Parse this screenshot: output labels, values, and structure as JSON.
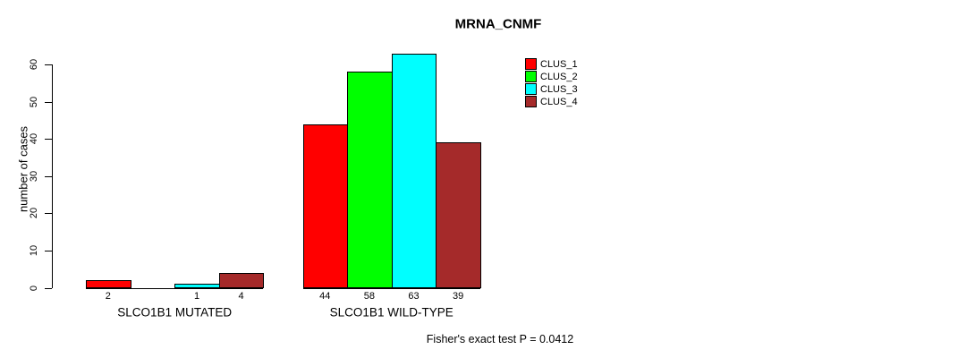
{
  "chart_data": {
    "type": "bar",
    "title": "MRNA_CNMF",
    "ylabel": "number of cases",
    "ylim": [
      0,
      60
    ],
    "yticks": [
      0,
      10,
      20,
      30,
      40,
      50,
      60
    ],
    "grid": false,
    "legend_position": "top-right",
    "categories": [
      "SLCO1B1 MUTATED",
      "SLCO1B1 WILD-TYPE"
    ],
    "series": [
      {
        "name": "CLUS_1",
        "color": "#FF0000",
        "values": [
          2,
          44
        ]
      },
      {
        "name": "CLUS_2",
        "color": "#00FF00",
        "values": [
          0,
          58
        ]
      },
      {
        "name": "CLUS_3",
        "color": "#00FFFF",
        "values": [
          1,
          63
        ]
      },
      {
        "name": "CLUS_4",
        "color": "#A52A2A",
        "values": [
          4,
          39
        ]
      }
    ],
    "bar_value_labels": [
      [
        "2",
        "",
        "1",
        "4"
      ],
      [
        "44",
        "58",
        "63",
        "39"
      ]
    ],
    "annotation": "Fisher's exact test P = 0.0412"
  }
}
